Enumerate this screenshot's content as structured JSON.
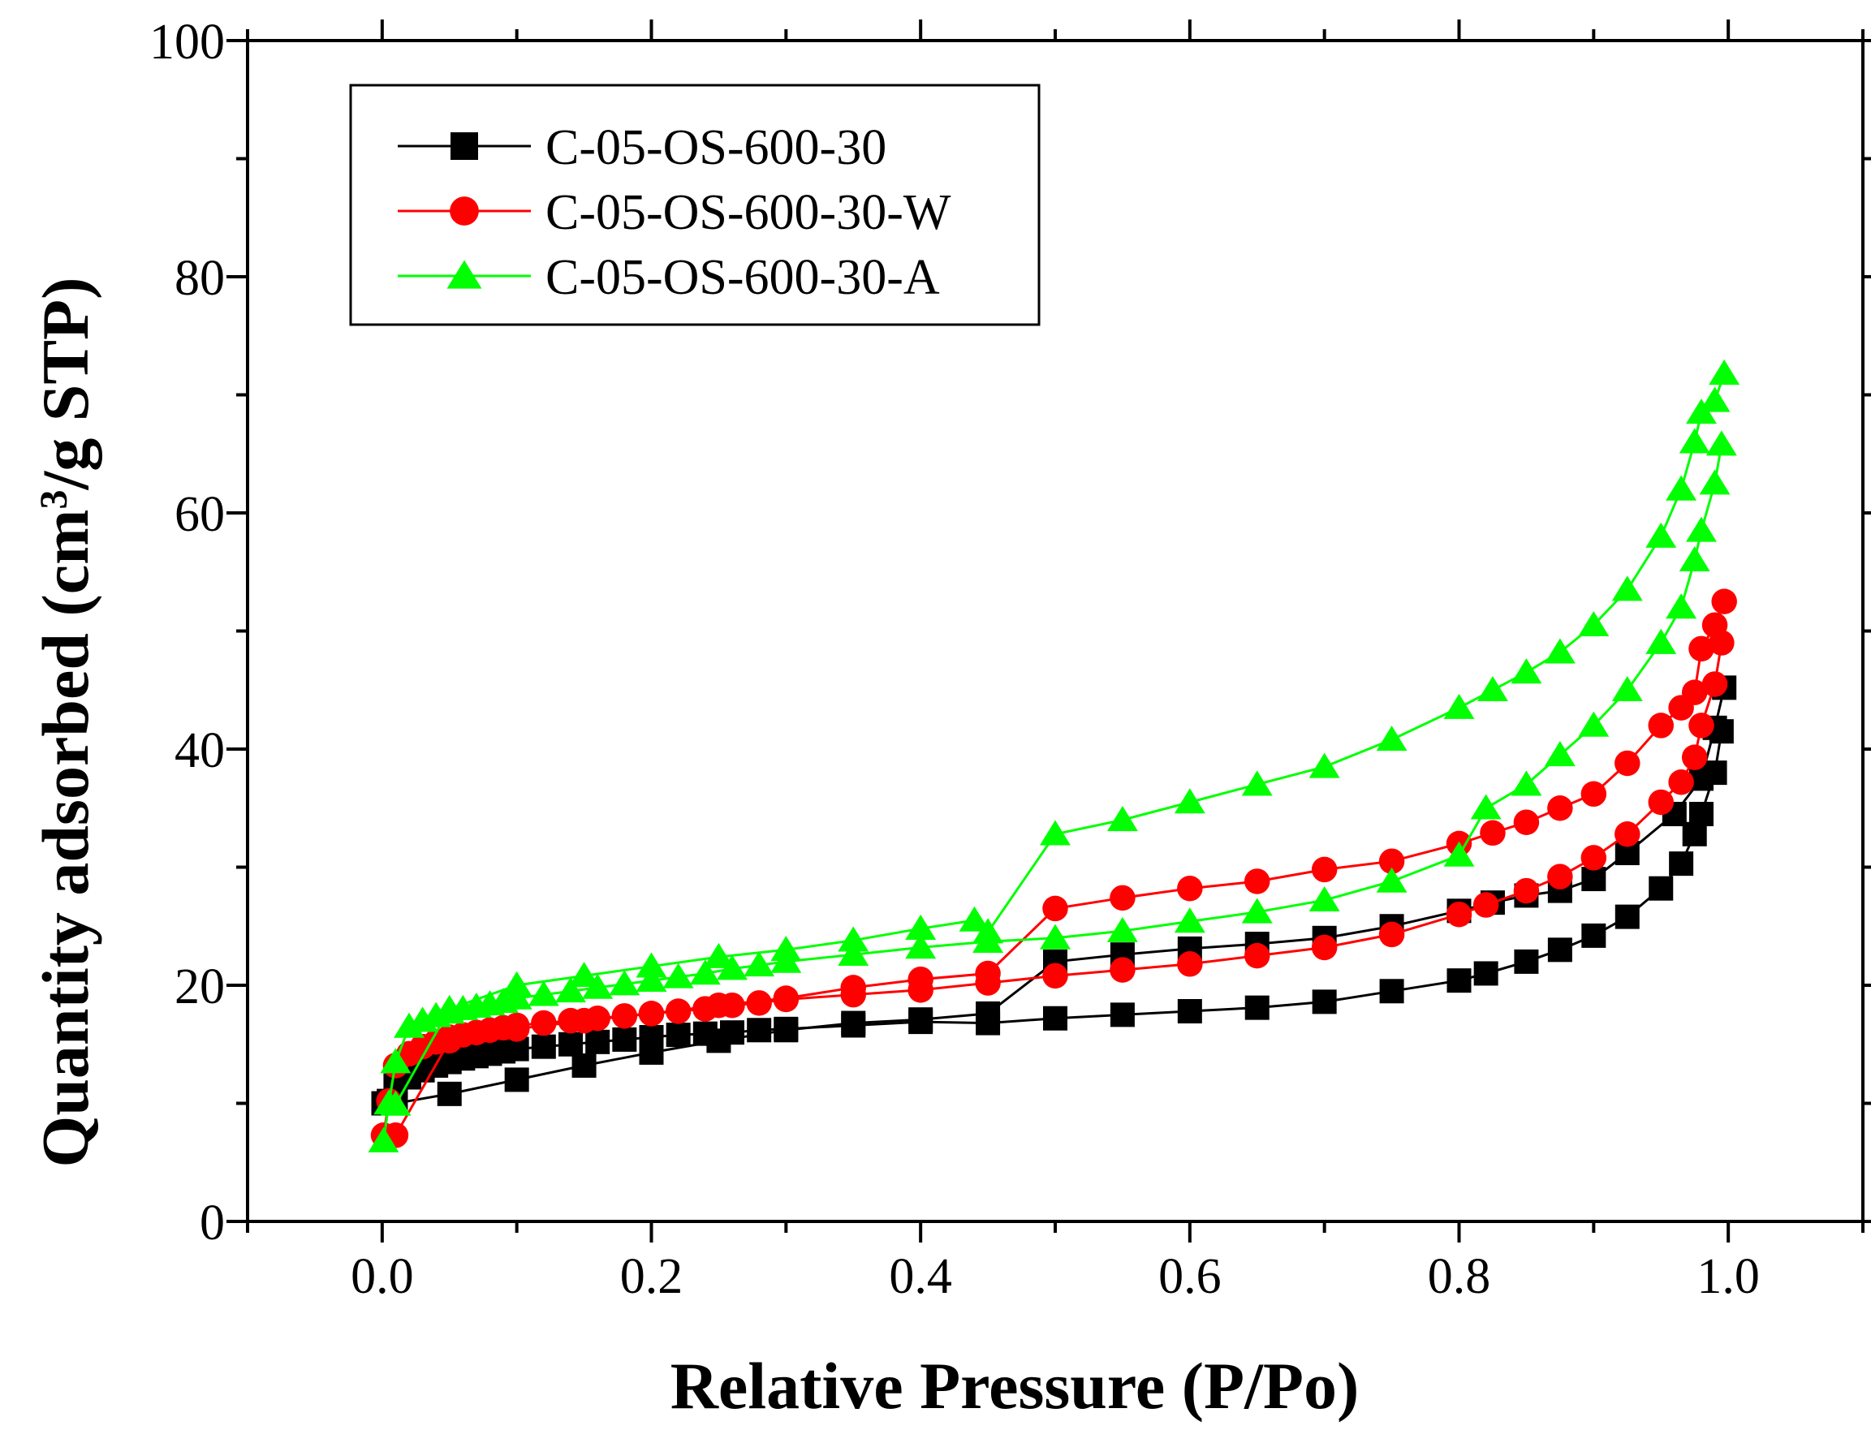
{
  "chart_data": {
    "type": "line",
    "title": "",
    "xlabel": "Relative Pressure (P/Po)",
    "ylabel_main": "Quantity adsorbed (cm",
    "ylabel_sup": "3",
    "ylabel_tail": "/g STP)",
    "xlim": [
      -0.1,
      1.1
    ],
    "ylim": [
      0,
      100
    ],
    "xticks": [
      0.0,
      0.2,
      0.4,
      0.6,
      0.8,
      1.0
    ],
    "xtick_labels": [
      "0.0",
      "0.2",
      "0.4",
      "0.6",
      "0.8",
      "1.0"
    ],
    "yticks": [
      0,
      20,
      40,
      60,
      80,
      100
    ],
    "ytick_labels": [
      "0",
      "20",
      "40",
      "60",
      "80",
      "100"
    ],
    "grid": false,
    "legend_position": "top-left",
    "series": [
      {
        "name": "C-05-OS-600-30",
        "color": "#000000",
        "marker": "square",
        "adsorption": {
          "x": [
            0.001,
            0.005,
            0.01,
            0.02,
            0.03,
            0.04,
            0.05,
            0.06,
            0.07,
            0.08,
            0.09,
            0.1,
            0.12,
            0.14,
            0.16,
            0.18,
            0.2,
            0.22,
            0.24,
            0.26,
            0.28,
            0.3,
            0.35,
            0.4,
            0.45,
            0.5,
            0.55,
            0.6,
            0.65,
            0.7,
            0.75,
            0.8,
            0.82,
            0.85,
            0.875,
            0.9,
            0.925,
            0.95,
            0.965,
            0.975,
            0.98,
            0.99,
            0.995
          ],
          "y": [
            10.0,
            10.2,
            11.5,
            12.2,
            12.8,
            13.2,
            13.5,
            13.8,
            14.0,
            14.2,
            14.4,
            14.6,
            14.8,
            15.0,
            15.2,
            15.4,
            15.6,
            15.8,
            15.9,
            16.0,
            16.2,
            16.3,
            16.6,
            16.9,
            16.8,
            17.2,
            17.5,
            17.8,
            18.1,
            18.6,
            19.5,
            20.4,
            21.0,
            22.0,
            23.0,
            24.2,
            25.8,
            28.2,
            30.3,
            32.8,
            34.5,
            38.0,
            41.5
          ]
        },
        "desorption": {
          "x": [
            0.997,
            0.99,
            0.98,
            0.96,
            0.925,
            0.9,
            0.875,
            0.85,
            0.825,
            0.8,
            0.75,
            0.7,
            0.65,
            0.6,
            0.55,
            0.5,
            0.45,
            0.4,
            0.35,
            0.3,
            0.25,
            0.2,
            0.15,
            0.1,
            0.05,
            0.01
          ],
          "y": [
            45.2,
            41.8,
            37.5,
            34.5,
            31.2,
            29.0,
            28.0,
            27.6,
            27.0,
            26.3,
            25.0,
            24.0,
            23.5,
            23.1,
            22.6,
            22.0,
            17.6,
            17.1,
            16.8,
            16.2,
            15.3,
            14.3,
            13.2,
            12.0,
            10.8,
            10.0
          ]
        }
      },
      {
        "name": "C-05-OS-600-30-W",
        "color": "#ff0000",
        "marker": "circle",
        "adsorption": {
          "x": [
            0.001,
            0.005,
            0.01,
            0.02,
            0.03,
            0.04,
            0.05,
            0.06,
            0.07,
            0.08,
            0.09,
            0.1,
            0.12,
            0.14,
            0.16,
            0.18,
            0.2,
            0.22,
            0.24,
            0.26,
            0.28,
            0.3,
            0.35,
            0.4,
            0.45,
            0.5,
            0.55,
            0.6,
            0.65,
            0.7,
            0.75,
            0.8,
            0.82,
            0.85,
            0.875,
            0.9,
            0.925,
            0.95,
            0.965,
            0.975,
            0.98,
            0.99,
            0.995
          ],
          "y": [
            7.3,
            10.2,
            13.2,
            14.2,
            14.8,
            15.2,
            15.6,
            15.8,
            16.0,
            16.2,
            16.4,
            16.6,
            16.8,
            17.0,
            17.2,
            17.4,
            17.6,
            17.8,
            18.0,
            18.3,
            18.5,
            18.8,
            19.2,
            19.6,
            20.2,
            20.8,
            21.3,
            21.8,
            22.5,
            23.2,
            24.3,
            26.0,
            26.8,
            28.0,
            29.2,
            30.8,
            32.8,
            35.5,
            37.2,
            39.3,
            42.0,
            45.5,
            49.0
          ]
        },
        "desorption": {
          "x": [
            0.997,
            0.99,
            0.98,
            0.975,
            0.965,
            0.95,
            0.925,
            0.9,
            0.875,
            0.85,
            0.825,
            0.8,
            0.75,
            0.7,
            0.65,
            0.6,
            0.55,
            0.5,
            0.45,
            0.4,
            0.35,
            0.3,
            0.25,
            0.2,
            0.15,
            0.1,
            0.05,
            0.01
          ],
          "y": [
            52.5,
            50.5,
            48.5,
            44.8,
            43.5,
            42.0,
            38.8,
            36.2,
            35.0,
            33.8,
            32.9,
            32.0,
            30.5,
            29.8,
            28.8,
            28.2,
            27.4,
            26.5,
            21.0,
            20.5,
            19.8,
            18.9,
            18.3,
            17.6,
            17.0,
            16.3,
            15.3,
            7.3
          ]
        }
      },
      {
        "name": "C-05-OS-600-30-A",
        "color": "#00ff00",
        "marker": "triangle",
        "adsorption": {
          "x": [
            0.001,
            0.005,
            0.01,
            0.02,
            0.03,
            0.04,
            0.05,
            0.06,
            0.07,
            0.08,
            0.09,
            0.1,
            0.12,
            0.14,
            0.16,
            0.18,
            0.2,
            0.22,
            0.24,
            0.26,
            0.28,
            0.3,
            0.35,
            0.4,
            0.45,
            0.5,
            0.55,
            0.6,
            0.65,
            0.7,
            0.75,
            0.8,
            0.82,
            0.85,
            0.875,
            0.9,
            0.925,
            0.95,
            0.965,
            0.975,
            0.98,
            0.99,
            0.995
          ],
          "y": [
            6.8,
            10.0,
            13.5,
            16.5,
            17.0,
            17.4,
            17.7,
            18.0,
            18.2,
            18.4,
            18.6,
            18.9,
            19.2,
            19.5,
            19.8,
            20.1,
            20.4,
            20.7,
            21.0,
            21.4,
            21.7,
            22.0,
            22.6,
            23.2,
            23.7,
            24.0,
            24.6,
            25.4,
            26.2,
            27.2,
            28.8,
            31.0,
            35.0,
            37.0,
            39.5,
            42.0,
            45.0,
            49.0,
            52.0,
            56.0,
            58.5,
            62.5,
            65.8
          ]
        },
        "desorption": {
          "x": [
            0.997,
            0.99,
            0.98,
            0.975,
            0.965,
            0.95,
            0.925,
            0.9,
            0.875,
            0.85,
            0.825,
            0.8,
            0.75,
            0.7,
            0.65,
            0.6,
            0.55,
            0.5,
            0.45,
            0.44,
            0.4,
            0.35,
            0.3,
            0.25,
            0.2,
            0.15,
            0.1,
            0.05,
            0.01
          ],
          "y": [
            71.8,
            69.5,
            68.5,
            66.0,
            62.0,
            58.0,
            53.5,
            50.5,
            48.2,
            46.5,
            45.0,
            43.5,
            40.8,
            38.5,
            37.0,
            35.5,
            34.0,
            32.8,
            24.5,
            25.5,
            24.8,
            23.8,
            23.0,
            22.4,
            21.6,
            20.8,
            20.0,
            18.0,
            9.9
          ]
        }
      }
    ]
  }
}
